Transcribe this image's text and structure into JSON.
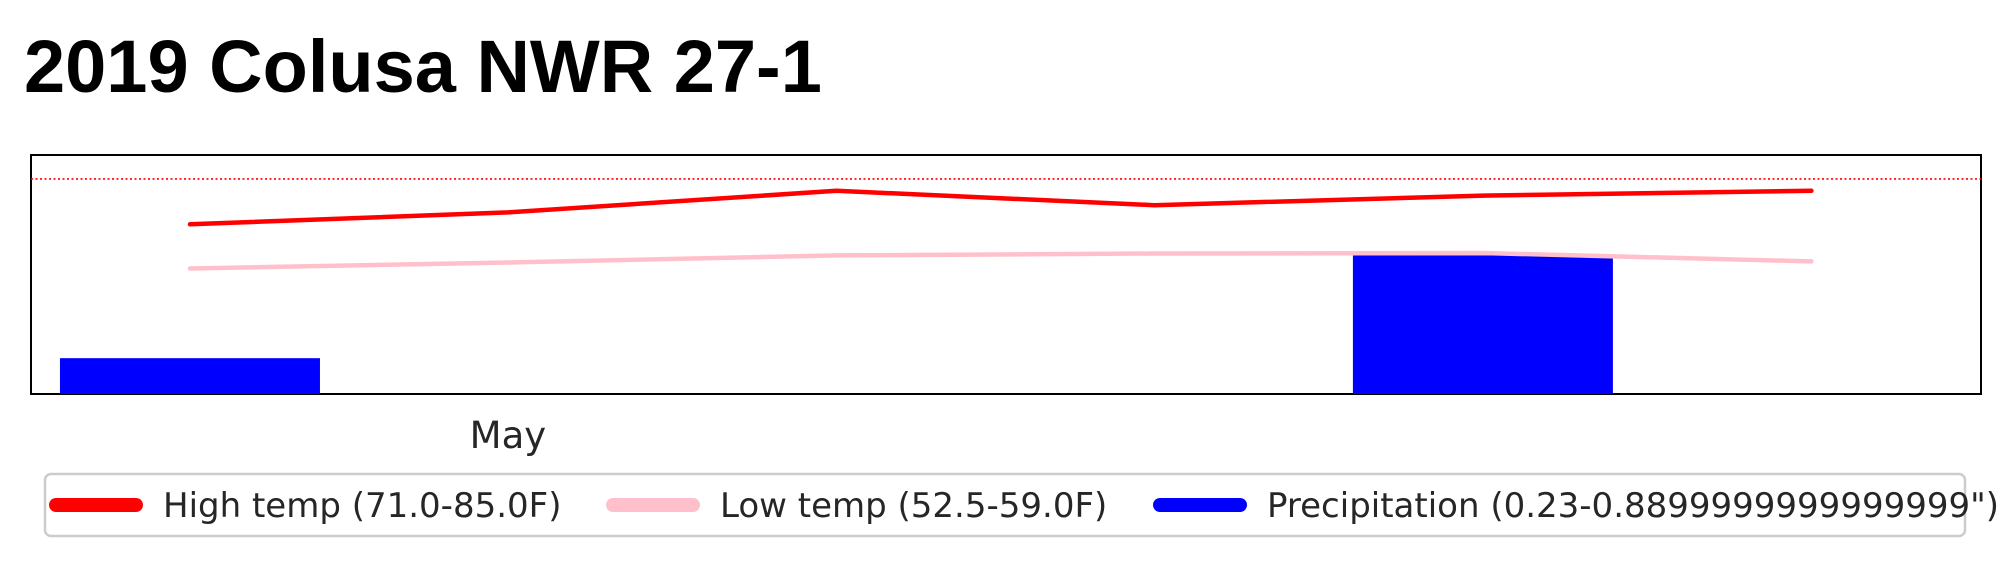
{
  "chart_data": {
    "type": "line",
    "title": "2019 Colusa NWR 27-1",
    "xlabel": "",
    "ylabel": "",
    "x": [
      "2019-04-01",
      "2019-05-01",
      "2019-06-01",
      "2019-07-01",
      "2019-08-01",
      "2019-09-01"
    ],
    "x_ticks": [
      {
        "x": "2019-05-01",
        "label": "May"
      }
    ],
    "xlim": [
      "2019-03-17",
      "2019-09-17"
    ],
    "ylim": [
      0,
      100
    ],
    "reference_line": {
      "y": 90,
      "color": "#ff0000",
      "style": "dotted"
    },
    "series": [
      {
        "name": "High temp (71.0-85.0F)",
        "kind": "line",
        "color": "#ff0000",
        "values": [
          71.0,
          76.0,
          85.0,
          79.0,
          83.0,
          85.0
        ]
      },
      {
        "name": "Low temp (52.5-59.0F)",
        "kind": "line",
        "color": "#ffc0cb",
        "values": [
          52.5,
          55.0,
          58.0,
          58.8,
          59.0,
          55.5
        ]
      },
      {
        "name": "Precipitation (0.23-0.8899999999999999\")",
        "kind": "bar",
        "color": "#0000ff",
        "points": [
          {
            "x": "2019-04-01",
            "value": 0.23
          },
          {
            "x": "2019-08-01",
            "value": 0.8899999999999999
          }
        ]
      }
    ],
    "grid": false,
    "legend_position": "bottom"
  }
}
